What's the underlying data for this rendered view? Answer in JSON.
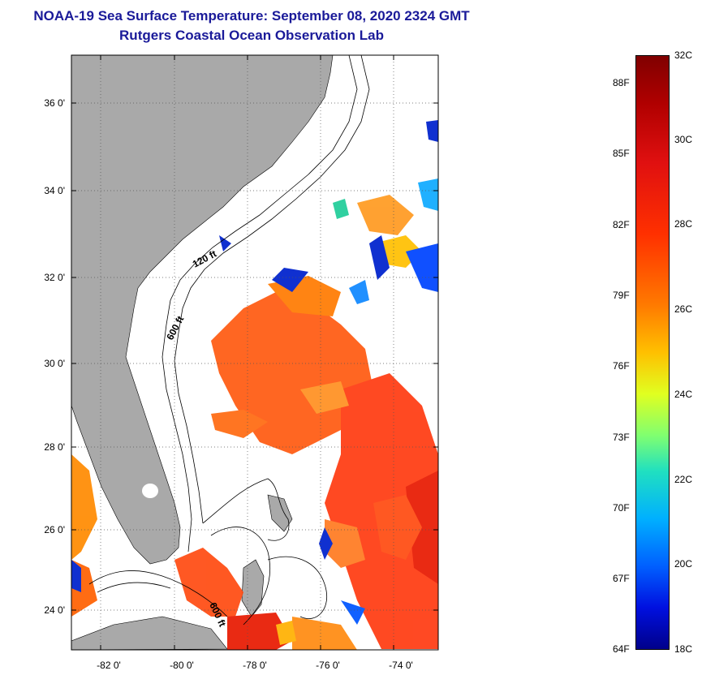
{
  "title_line1": "NOAA-19 Sea Surface Temperature:  September 08, 2020 2324 GMT",
  "title_line2": "Rutgers Coastal Ocean Observation Lab",
  "map": {
    "lat_labels": [
      "36 0'",
      "34 0'",
      "32 0'",
      "30 0'",
      "28 0'",
      "26 0'",
      "24 0'"
    ],
    "lon_labels": [
      "-82 0'",
      "-80 0'",
      "-78 0'",
      "-76 0'",
      "-74 0'"
    ],
    "contour_labels": [
      "120 ft",
      "600 ft",
      "600 ft"
    ]
  },
  "colorbar": {
    "fahrenheit_labels": [
      "88F",
      "85F",
      "82F",
      "79F",
      "76F",
      "73F",
      "70F",
      "67F",
      "64F"
    ],
    "celsius_labels": [
      "32C",
      "30C",
      "28C",
      "26C",
      "24C",
      "22C",
      "20C",
      "18C"
    ]
  },
  "colors": {
    "land": "#a9a9a9",
    "title": "#1a1a99",
    "ocean": "#ffffff"
  }
}
